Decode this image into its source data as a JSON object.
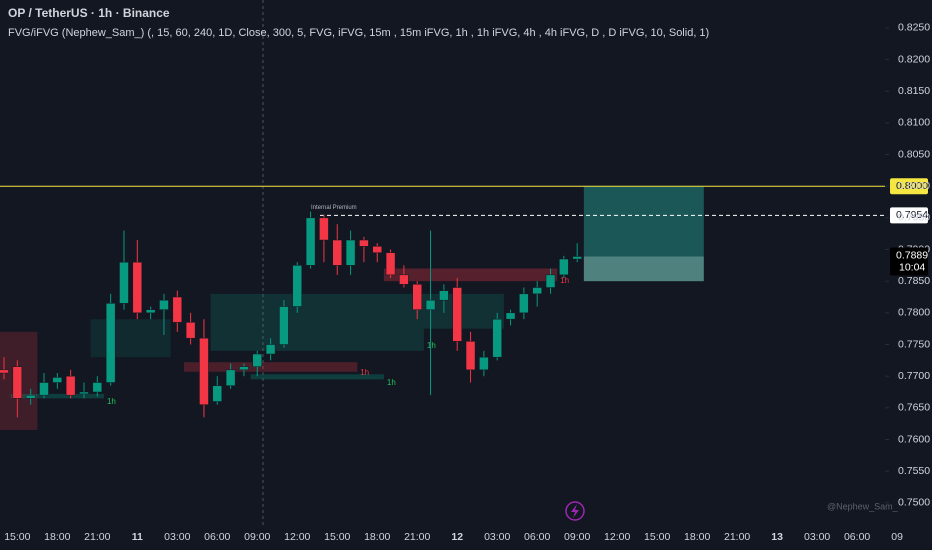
{
  "chart_data": {
    "type": "candlestick",
    "title": "OP / TetherUS · 1h · Binance",
    "subtitle": "FVG/iFVG (Nephew_Sam_) (, 15, 60, 240, 1D, Close, 300, 5, FVG, iFVG, 15m , 15m iFVG, 1h , 1h iFVG, 4h , 4h iFVG, D , D iFVG, 10, Solid, 1)",
    "watermark": "@Nephew_Sam_",
    "annotation": "Internal Premium",
    "up_color": "#089981",
    "down_color": "#f23645",
    "categories": [
      null,
      "15:00",
      null,
      null,
      "18:00",
      null,
      null,
      "21:00",
      null,
      null,
      "11",
      null,
      null,
      "03:00",
      null,
      null,
      "06:00",
      null,
      null,
      "09:00",
      null,
      null,
      "12:00",
      null,
      null,
      "15:00",
      null,
      null,
      "18:00",
      null,
      null,
      "21:00",
      null,
      null,
      "12",
      null,
      null,
      "03:00",
      null,
      null,
      "06:00",
      null,
      null,
      "09:00",
      null,
      null,
      "12:00",
      null,
      null,
      "15:00",
      null,
      null,
      "18:00",
      null,
      null,
      "21:00",
      null,
      null,
      "13",
      null,
      null,
      "03:00",
      null,
      null,
      "06:00",
      null,
      null,
      "09"
    ],
    "open": [
      0.771,
      0.7715,
      0.7665,
      0.767,
      0.769,
      0.77,
      0.7672,
      0.7675,
      0.769,
      0.7815,
      0.788,
      0.78,
      0.7805,
      0.7825,
      0.7785,
      0.776,
      0.766,
      0.7685,
      0.771,
      0.7715,
      0.7735,
      0.775,
      0.781,
      0.7875,
      0.795,
      0.7915,
      0.7875,
      0.7915,
      0.7905,
      0.7895,
      0.786,
      0.7845,
      0.7805,
      0.782,
      0.784,
      0.7755,
      0.771,
      0.773,
      0.779,
      0.78,
      0.783,
      0.784,
      0.786,
      0.7885,
      null,
      null,
      null,
      null,
      null,
      null,
      null,
      null,
      null,
      null,
      null,
      null,
      null,
      null,
      null,
      null,
      null,
      null,
      null,
      null,
      null,
      null,
      null,
      null
    ],
    "high": [
      0.773,
      0.7725,
      0.768,
      0.7705,
      0.7705,
      0.771,
      0.769,
      0.77,
      0.783,
      0.793,
      0.7915,
      0.781,
      0.783,
      0.7835,
      0.78,
      0.779,
      0.77,
      0.772,
      0.772,
      0.774,
      0.776,
      0.782,
      0.788,
      0.796,
      0.7955,
      0.794,
      0.793,
      0.792,
      0.791,
      0.79,
      0.7875,
      0.785,
      0.793,
      0.7845,
      0.7855,
      0.777,
      0.774,
      0.78,
      0.7805,
      0.784,
      0.785,
      0.787,
      0.789,
      0.791,
      null,
      null,
      null,
      null,
      null,
      null,
      null,
      null,
      null,
      null,
      null,
      null,
      null,
      null,
      null,
      null,
      null,
      null,
      null,
      null,
      null,
      null,
      null,
      null
    ],
    "low": [
      0.7695,
      0.7635,
      0.7655,
      0.7665,
      0.768,
      0.7665,
      0.7665,
      0.7668,
      0.7685,
      0.7805,
      0.779,
      0.779,
      0.7765,
      0.777,
      0.775,
      0.7635,
      0.7655,
      0.768,
      0.77,
      0.77,
      0.7725,
      0.7745,
      0.78,
      0.787,
      0.788,
      0.786,
      0.786,
      0.788,
      0.788,
      0.7855,
      0.784,
      0.779,
      0.767,
      0.78,
      0.774,
      0.769,
      0.77,
      0.7725,
      0.778,
      0.779,
      0.781,
      0.783,
      0.7855,
      0.788,
      null,
      null,
      null,
      null,
      null,
      null,
      null,
      null,
      null,
      null,
      null,
      null,
      null,
      null,
      null,
      null,
      null,
      null,
      null,
      null,
      null,
      null,
      null,
      null
    ],
    "close": [
      0.7705,
      0.7665,
      0.767,
      0.769,
      0.7698,
      0.767,
      0.7675,
      0.769,
      0.7815,
      0.788,
      0.78,
      0.7805,
      0.782,
      0.7785,
      0.776,
      0.7655,
      0.7685,
      0.771,
      0.7715,
      0.7735,
      0.775,
      0.781,
      0.7875,
      0.795,
      0.7915,
      0.7875,
      0.7915,
      0.7905,
      0.7895,
      0.786,
      0.7845,
      0.7805,
      0.782,
      0.7835,
      0.7755,
      0.771,
      0.773,
      0.779,
      0.78,
      0.783,
      0.784,
      0.786,
      0.7885,
      0.7889,
      null,
      null,
      null,
      null,
      null,
      null,
      null,
      null,
      null,
      null,
      null,
      null,
      null,
      null,
      null,
      null,
      null,
      null,
      null,
      null,
      null,
      null,
      null,
      null
    ],
    "countdown": "10:04",
    "zones": [
      {
        "x_start": 0,
        "x_end": 2,
        "low": 0.7615,
        "high": 0.777,
        "color": "rgba(242,54,69,0.2)"
      },
      {
        "x_start": 1,
        "x_end": 7,
        "low": 0.7665,
        "high": 0.7672,
        "color": "rgba(8,153,129,0.3)",
        "label": "1h"
      },
      {
        "x_start": 7,
        "x_end": 12,
        "low": 0.773,
        "high": 0.779,
        "color": "rgba(8,153,129,0.15)"
      },
      {
        "x_start": 16,
        "x_end": 37,
        "low": 0.7775,
        "high": 0.783,
        "color": "rgba(8,153,129,0.2)"
      },
      {
        "x_start": 16,
        "x_end": 31,
        "low": 0.774,
        "high": 0.7775,
        "color": "rgba(8,153,129,0.2)",
        "label": "1h"
      },
      {
        "x_start": 14,
        "x_end": 26,
        "low": 0.7707,
        "high": 0.7722,
        "color": "rgba(242,54,69,0.25)",
        "label": "1h"
      },
      {
        "x_start": 19,
        "x_end": 28,
        "low": 0.7695,
        "high": 0.7703,
        "color": "rgba(8,153,129,0.3)",
        "label": "1h"
      },
      {
        "x_start": 29,
        "x_end": 41,
        "low": 0.785,
        "high": 0.787,
        "color": "rgba(242,54,69,0.3)",
        "label": "1h"
      },
      {
        "x_start": 44,
        "x_end": 52,
        "low": 0.7889,
        "high": 0.8,
        "color": "rgba(38,166,154,0.45)"
      },
      {
        "x_start": 44,
        "x_end": 52,
        "low": 0.785,
        "high": 0.7889,
        "color": "rgba(120,200,190,0.6)"
      }
    ],
    "price_lines": [
      {
        "value": 0.8,
        "label": "0.8000",
        "color": "#f5e642"
      },
      {
        "value": 0.7954,
        "color": "#ffffff"
      }
    ],
    "ylim": [
      0.7465,
      0.8294
    ],
    "yticks": [
      {
        "value": 0.75,
        "label": "0.7500"
      },
      {
        "value": 0.755,
        "label": "0.7550"
      },
      {
        "value": 0.76,
        "label": "0.7600"
      },
      {
        "value": 0.765,
        "label": "0.7650"
      },
      {
        "value": 0.77,
        "label": "0.7700"
      },
      {
        "value": 0.775,
        "label": "0.7750"
      },
      {
        "value": 0.78,
        "label": "0.7800"
      },
      {
        "value": 0.785,
        "label": "0.7850"
      },
      {
        "value": 0.79,
        "label": "0.7900"
      },
      {
        "value": 0.795,
        "label": "0.7950"
      },
      {
        "value": 0.8,
        "label": "0.8000"
      },
      {
        "value": 0.805,
        "label": "0.8050"
      },
      {
        "value": 0.81,
        "label": "0.8100"
      },
      {
        "value": 0.815,
        "label": "0.8150"
      },
      {
        "value": 0.82,
        "label": "0.8200"
      },
      {
        "value": 0.825,
        "label": "0.8250"
      }
    ]
  }
}
